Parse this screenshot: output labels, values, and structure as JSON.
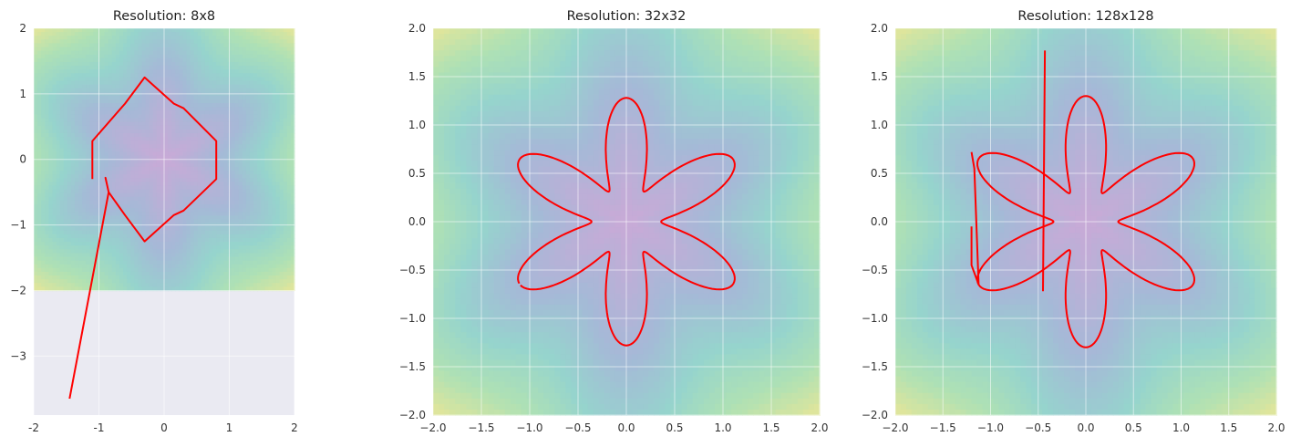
{
  "chart_data": [
    {
      "type": "contour",
      "title": "Resolution: 8x8",
      "xlim": [
        -2,
        2
      ],
      "ylim": [
        -3.9,
        2
      ],
      "x_ticks": [
        "-2",
        "-1",
        "0",
        "1",
        "2"
      ],
      "x_tick_values": [
        -2,
        -1,
        0,
        1,
        2
      ],
      "y_ticks": [
        "−3",
        "−2",
        "−1",
        "0",
        "1",
        "2"
      ],
      "y_tick_values": [
        -3,
        -2,
        -1,
        0,
        1,
        2
      ],
      "field_extent": {
        "x": [
          -2,
          2
        ],
        "y": [
          -2,
          2
        ]
      },
      "colormap": "viridis",
      "grid": true,
      "series": [
        {
          "color": "#ff0000",
          "x": [
            -1.1,
            -1.1,
            -0.6,
            -0.3,
            0.15,
            0.3,
            0.8,
            0.8,
            0.3,
            0.15,
            -0.3,
            -0.6,
            -0.85,
            -0.9,
            -0.85,
            -1.45
          ],
          "y": [
            -0.3,
            0.28,
            0.85,
            1.25,
            0.85,
            0.78,
            0.28,
            -0.3,
            -0.78,
            -0.85,
            -1.25,
            -0.85,
            -0.5,
            -0.28,
            -0.5,
            -3.65
          ]
        }
      ]
    },
    {
      "type": "contour",
      "title": "Resolution: 32x32",
      "xlim": [
        -2,
        2
      ],
      "ylim": [
        -2,
        2
      ],
      "x_ticks": [
        "−2.0",
        "−1.5",
        "−1.0",
        "−0.5",
        "0.0",
        "0.5",
        "1.0",
        "1.5",
        "2.0"
      ],
      "x_tick_values": [
        -2,
        -1.5,
        -1,
        -0.5,
        0,
        0.5,
        1,
        1.5,
        2
      ],
      "y_ticks": [
        "−2.0",
        "−1.5",
        "−1.0",
        "−0.5",
        "0.0",
        "0.5",
        "1.0",
        "1.5",
        "2.0"
      ],
      "y_tick_values": [
        -2,
        -1.5,
        -1,
        -0.5,
        0,
        0.5,
        1,
        1.5,
        2
      ],
      "field_extent": {
        "x": [
          -2,
          2
        ],
        "y": [
          -2,
          2
        ]
      },
      "colormap": "viridis",
      "grid": true,
      "series": [
        {
          "color": "#ff0000",
          "curve": "six-petal-loop",
          "theta_range_deg": [
            -149,
            210
          ],
          "radius": {
            "base": 0.82,
            "amplitude": 0.46,
            "petals": 6
          }
        }
      ]
    },
    {
      "type": "contour",
      "title": "Resolution: 128x128",
      "xlim": [
        -2,
        2
      ],
      "ylim": [
        -2,
        2
      ],
      "x_ticks": [
        "−2.0",
        "−1.5",
        "−1.0",
        "−0.5",
        "0.0",
        "0.5",
        "1.0",
        "1.5",
        "2.0"
      ],
      "x_tick_values": [
        -2,
        -1.5,
        -1,
        -0.5,
        0,
        0.5,
        1,
        1.5,
        2
      ],
      "y_ticks": [
        "−2.0",
        "−1.5",
        "−1.0",
        "−0.5",
        "0.0",
        "0.5",
        "1.0",
        "1.5",
        "2.0"
      ],
      "y_tick_values": [
        -2,
        -1.5,
        -1,
        -0.5,
        0,
        0.5,
        1,
        1.5,
        2
      ],
      "field_extent": {
        "x": [
          -2,
          2
        ],
        "y": [
          -2,
          2
        ]
      },
      "colormap": "viridis",
      "grid": true,
      "series": [
        {
          "color": "#ff0000",
          "curve": "six-petal-loop",
          "theta_range_deg": [
            -150,
            210
          ],
          "radius": {
            "base": 0.82,
            "amplitude": 0.48,
            "petals": 6
          },
          "lead_in": {
            "x": [
              -1.2,
              -1.2
            ],
            "y": [
              -0.05,
              -0.45
            ]
          },
          "lead_out": {
            "x": [
              -1.17,
              -1.2
            ],
            "y": [
              0.55,
              0.72
            ]
          },
          "spike": {
            "x": [
              -0.45,
              -0.43
            ],
            "y": [
              -0.72,
              1.77
            ]
          }
        }
      ]
    }
  ]
}
